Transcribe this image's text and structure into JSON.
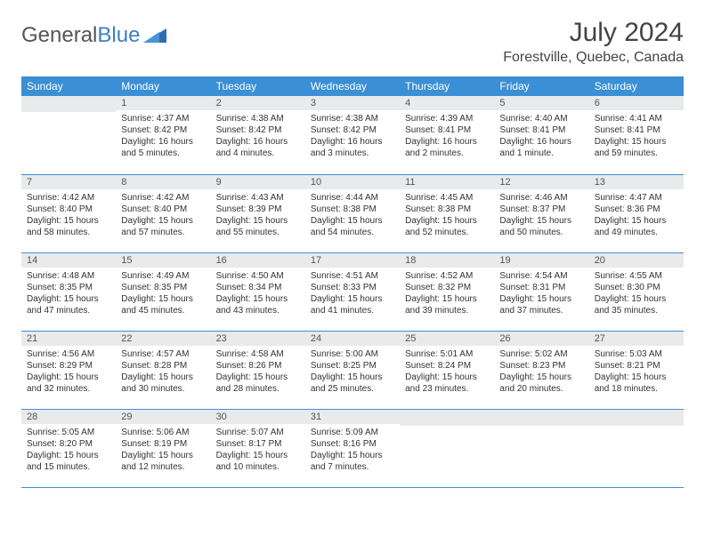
{
  "logo": {
    "part1": "General",
    "part2": "Blue"
  },
  "title": "July 2024",
  "location": "Forestville, Quebec, Canada",
  "header_bg": "#3b8fd4",
  "day_bg": "#e9eaec",
  "weekdays": [
    "Sunday",
    "Monday",
    "Tuesday",
    "Wednesday",
    "Thursday",
    "Friday",
    "Saturday"
  ],
  "first_weekday_index": 1,
  "days": [
    {
      "n": 1,
      "sunrise": "4:37 AM",
      "sunset": "8:42 PM",
      "daylight": "16 hours and 5 minutes."
    },
    {
      "n": 2,
      "sunrise": "4:38 AM",
      "sunset": "8:42 PM",
      "daylight": "16 hours and 4 minutes."
    },
    {
      "n": 3,
      "sunrise": "4:38 AM",
      "sunset": "8:42 PM",
      "daylight": "16 hours and 3 minutes."
    },
    {
      "n": 4,
      "sunrise": "4:39 AM",
      "sunset": "8:41 PM",
      "daylight": "16 hours and 2 minutes."
    },
    {
      "n": 5,
      "sunrise": "4:40 AM",
      "sunset": "8:41 PM",
      "daylight": "16 hours and 1 minute."
    },
    {
      "n": 6,
      "sunrise": "4:41 AM",
      "sunset": "8:41 PM",
      "daylight": "15 hours and 59 minutes."
    },
    {
      "n": 7,
      "sunrise": "4:42 AM",
      "sunset": "8:40 PM",
      "daylight": "15 hours and 58 minutes."
    },
    {
      "n": 8,
      "sunrise": "4:42 AM",
      "sunset": "8:40 PM",
      "daylight": "15 hours and 57 minutes."
    },
    {
      "n": 9,
      "sunrise": "4:43 AM",
      "sunset": "8:39 PM",
      "daylight": "15 hours and 55 minutes."
    },
    {
      "n": 10,
      "sunrise": "4:44 AM",
      "sunset": "8:38 PM",
      "daylight": "15 hours and 54 minutes."
    },
    {
      "n": 11,
      "sunrise": "4:45 AM",
      "sunset": "8:38 PM",
      "daylight": "15 hours and 52 minutes."
    },
    {
      "n": 12,
      "sunrise": "4:46 AM",
      "sunset": "8:37 PM",
      "daylight": "15 hours and 50 minutes."
    },
    {
      "n": 13,
      "sunrise": "4:47 AM",
      "sunset": "8:36 PM",
      "daylight": "15 hours and 49 minutes."
    },
    {
      "n": 14,
      "sunrise": "4:48 AM",
      "sunset": "8:35 PM",
      "daylight": "15 hours and 47 minutes."
    },
    {
      "n": 15,
      "sunrise": "4:49 AM",
      "sunset": "8:35 PM",
      "daylight": "15 hours and 45 minutes."
    },
    {
      "n": 16,
      "sunrise": "4:50 AM",
      "sunset": "8:34 PM",
      "daylight": "15 hours and 43 minutes."
    },
    {
      "n": 17,
      "sunrise": "4:51 AM",
      "sunset": "8:33 PM",
      "daylight": "15 hours and 41 minutes."
    },
    {
      "n": 18,
      "sunrise": "4:52 AM",
      "sunset": "8:32 PM",
      "daylight": "15 hours and 39 minutes."
    },
    {
      "n": 19,
      "sunrise": "4:54 AM",
      "sunset": "8:31 PM",
      "daylight": "15 hours and 37 minutes."
    },
    {
      "n": 20,
      "sunrise": "4:55 AM",
      "sunset": "8:30 PM",
      "daylight": "15 hours and 35 minutes."
    },
    {
      "n": 21,
      "sunrise": "4:56 AM",
      "sunset": "8:29 PM",
      "daylight": "15 hours and 32 minutes."
    },
    {
      "n": 22,
      "sunrise": "4:57 AM",
      "sunset": "8:28 PM",
      "daylight": "15 hours and 30 minutes."
    },
    {
      "n": 23,
      "sunrise": "4:58 AM",
      "sunset": "8:26 PM",
      "daylight": "15 hours and 28 minutes."
    },
    {
      "n": 24,
      "sunrise": "5:00 AM",
      "sunset": "8:25 PM",
      "daylight": "15 hours and 25 minutes."
    },
    {
      "n": 25,
      "sunrise": "5:01 AM",
      "sunset": "8:24 PM",
      "daylight": "15 hours and 23 minutes."
    },
    {
      "n": 26,
      "sunrise": "5:02 AM",
      "sunset": "8:23 PM",
      "daylight": "15 hours and 20 minutes."
    },
    {
      "n": 27,
      "sunrise": "5:03 AM",
      "sunset": "8:21 PM",
      "daylight": "15 hours and 18 minutes."
    },
    {
      "n": 28,
      "sunrise": "5:05 AM",
      "sunset": "8:20 PM",
      "daylight": "15 hours and 15 minutes."
    },
    {
      "n": 29,
      "sunrise": "5:06 AM",
      "sunset": "8:19 PM",
      "daylight": "15 hours and 12 minutes."
    },
    {
      "n": 30,
      "sunrise": "5:07 AM",
      "sunset": "8:17 PM",
      "daylight": "15 hours and 10 minutes."
    },
    {
      "n": 31,
      "sunrise": "5:09 AM",
      "sunset": "8:16 PM",
      "daylight": "15 hours and 7 minutes."
    }
  ],
  "labels": {
    "sunrise": "Sunrise:",
    "sunset": "Sunset:",
    "daylight": "Daylight:"
  }
}
